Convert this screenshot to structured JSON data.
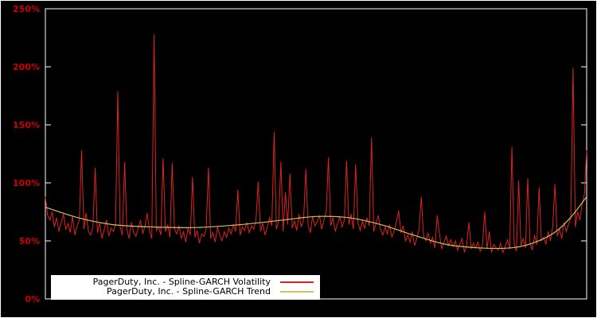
{
  "chart_data": {
    "type": "line",
    "title": "",
    "xlabel": "",
    "ylabel": "",
    "ylim": [
      0,
      250
    ],
    "ytick_values": [
      0,
      50,
      100,
      150,
      200,
      250
    ],
    "ytick_labels": [
      "0%",
      "50%",
      "100%",
      "150%",
      "200%",
      "250%"
    ],
    "grid": false,
    "legend_position": "bottom-inside-left",
    "background": "#000000",
    "frame_color": "#ffffff",
    "tick_label_color": "#cc0000",
    "series": [
      {
        "name": "PagerDuty, Inc. - Spline-GARCH Volatility",
        "color": "#dd2222",
        "style": "noisy-line",
        "unit": "percent",
        "values_percent": [
          88,
          72,
          68,
          75,
          62,
          70,
          58,
          66,
          73,
          60,
          65,
          57,
          71,
          55,
          63,
          68,
          128,
          60,
          74,
          58,
          55,
          62,
          113,
          57,
          65,
          52,
          60,
          68,
          54,
          61,
          58,
          64,
          179,
          62,
          55,
          118,
          60,
          52,
          66,
          57,
          54,
          61,
          68,
          56,
          63,
          74,
          58,
          52,
          228,
          59,
          62,
          55,
          121,
          58,
          64,
          53,
          117,
          60,
          56,
          63,
          52,
          58,
          49,
          61,
          55,
          105,
          53,
          59,
          48,
          56,
          54,
          60,
          113,
          52,
          57,
          49,
          62,
          55,
          50,
          58,
          53,
          61,
          56,
          64,
          58,
          94,
          55,
          62,
          59,
          66,
          57,
          63,
          60,
          68,
          101,
          58,
          65,
          55,
          62,
          70,
          63,
          144,
          60,
          67,
          118,
          58,
          92,
          64,
          108,
          61,
          67,
          59,
          73,
          62,
          68,
          112,
          64,
          57,
          71,
          63,
          66,
          72,
          60,
          68,
          75,
          122,
          63,
          70,
          58,
          65,
          71,
          62,
          68,
          119,
          64,
          73,
          60,
          116,
          66,
          59,
          67,
          61,
          70,
          63,
          139,
          58,
          65,
          72,
          60,
          55,
          62,
          56,
          64,
          53,
          59,
          66,
          76,
          57,
          63,
          50,
          55,
          49,
          58,
          46,
          52,
          60,
          88,
          54,
          50,
          57,
          48,
          53,
          44,
          72,
          56,
          43,
          49,
          54,
          46,
          51,
          45,
          50,
          42,
          47,
          52,
          40,
          46,
          66,
          43,
          48,
          44,
          49,
          41,
          46,
          75,
          43,
          58,
          40,
          47,
          44,
          42,
          48,
          40,
          45,
          51,
          43,
          131,
          47,
          41,
          102,
          46,
          52,
          44,
          104,
          48,
          42,
          55,
          47,
          96,
          50,
          53,
          47,
          58,
          50,
          62,
          99,
          54,
          60,
          52,
          66,
          58,
          64,
          70,
          199,
          62,
          75,
          68,
          82,
          90,
          128
        ]
      },
      {
        "name": "PagerDuty, Inc. - Spline-GARCH Trend",
        "color": "#cdc25e",
        "style": "smooth-spline",
        "unit": "percent",
        "knots_x": [
          0,
          0.06,
          0.125,
          0.2,
          0.28,
          0.36,
          0.44,
          0.5,
          0.56,
          0.62,
          0.68,
          0.74,
          0.8,
          0.86,
          0.9,
          0.94,
          0.97,
          1.0
        ],
        "knots_y": [
          79,
          70,
          64,
          62,
          61.5,
          64,
          68,
          71,
          70,
          64,
          55,
          47,
          44,
          44,
          48,
          57,
          70,
          88
        ]
      }
    ]
  }
}
